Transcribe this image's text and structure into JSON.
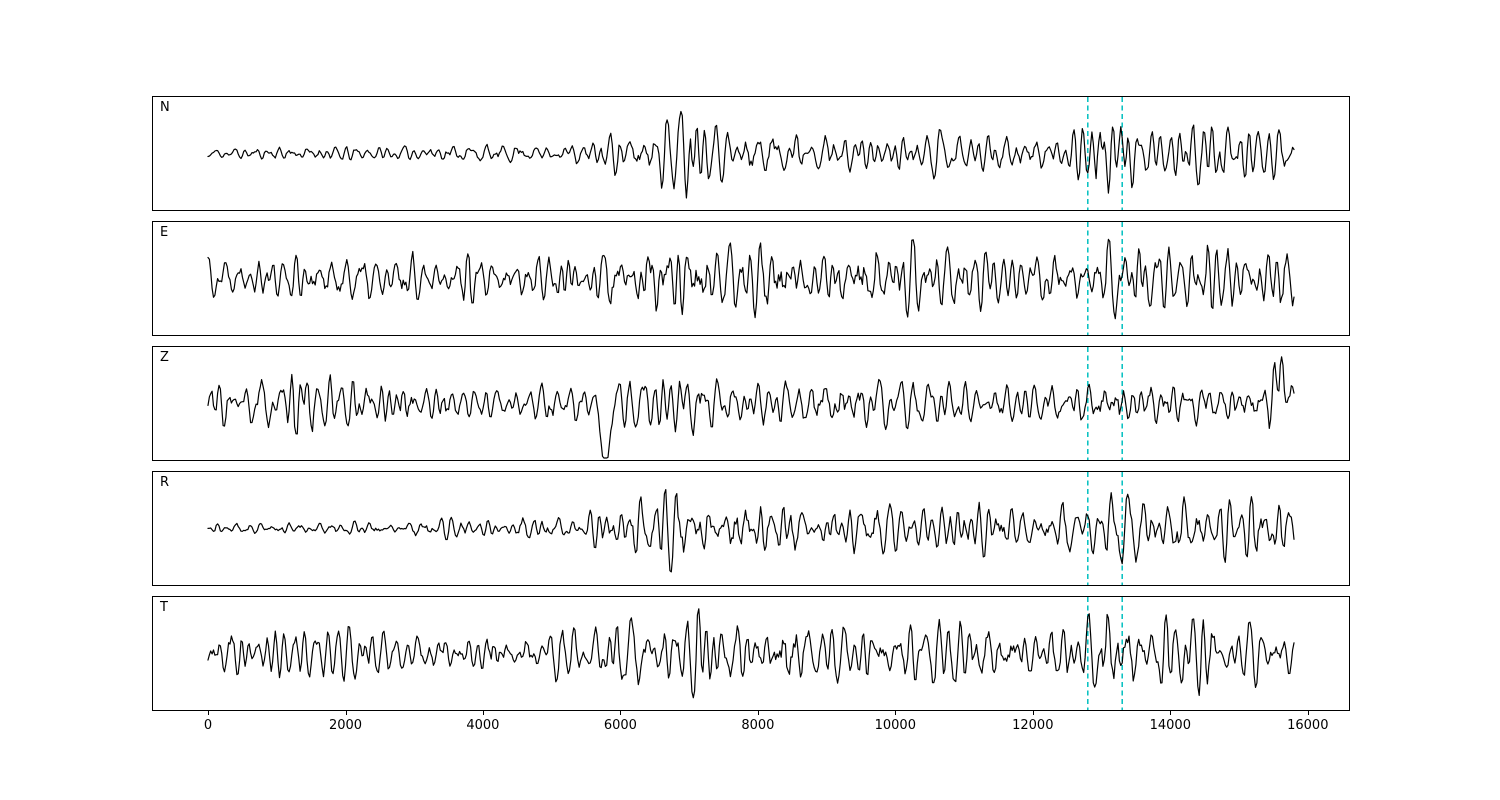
{
  "figure": {
    "background": "#ffffff",
    "panel_border_color": "#000000",
    "trace_color": "#000000",
    "marker_color": "#00bfbf",
    "marker_style": "dashed"
  },
  "chart_data": {
    "type": "line",
    "title": "",
    "xlabel": "",
    "ylabel": "",
    "legend": null,
    "grid": false,
    "x_range": [
      -800,
      16600
    ],
    "data_x_range": [
      0,
      15800
    ],
    "x_ticks": [
      0,
      2000,
      4000,
      6000,
      8000,
      10000,
      12000,
      14000,
      16000
    ],
    "x_tick_labels": [
      "0",
      "2000",
      "4000",
      "6000",
      "8000",
      "10000",
      "12000",
      "14000",
      "16000"
    ],
    "y_ticks_visible": false,
    "amplitude_scale": "normalized",
    "vlines": [
      12800,
      13300
    ],
    "panels": [
      {
        "label": "N",
        "seed": 11,
        "envelope": [
          [
            0,
            0.13
          ],
          [
            1500,
            0.16
          ],
          [
            3000,
            0.18
          ],
          [
            4500,
            0.2
          ],
          [
            5400,
            0.28
          ],
          [
            5800,
            0.42
          ],
          [
            6200,
            0.45
          ],
          [
            6500,
            0.75
          ],
          [
            6900,
            1.0
          ],
          [
            7300,
            0.65
          ],
          [
            7800,
            0.5
          ],
          [
            8300,
            0.55
          ],
          [
            8800,
            0.48
          ],
          [
            9300,
            0.42
          ],
          [
            9700,
            0.3
          ],
          [
            10200,
            0.45
          ],
          [
            10800,
            0.5
          ],
          [
            11500,
            0.45
          ],
          [
            12000,
            0.42
          ],
          [
            12500,
            0.45
          ],
          [
            12800,
            0.6
          ],
          [
            13000,
            1.05
          ],
          [
            13300,
            0.95
          ],
          [
            13600,
            0.55
          ],
          [
            14000,
            0.6
          ],
          [
            14500,
            0.7
          ],
          [
            15000,
            0.55
          ],
          [
            15400,
            0.65
          ],
          [
            15800,
            0.6
          ]
        ],
        "spikes": []
      },
      {
        "label": "E",
        "seed": 22,
        "envelope": [
          [
            0,
            0.45
          ],
          [
            1000,
            0.5
          ],
          [
            2000,
            0.48
          ],
          [
            3000,
            0.52
          ],
          [
            4000,
            0.45
          ],
          [
            5000,
            0.55
          ],
          [
            5800,
            0.65
          ],
          [
            6300,
            0.75
          ],
          [
            6800,
            0.8
          ],
          [
            7500,
            0.7
          ],
          [
            8000,
            0.75
          ],
          [
            8700,
            0.65
          ],
          [
            9300,
            0.7
          ],
          [
            10000,
            0.72
          ],
          [
            10700,
            0.75
          ],
          [
            11300,
            0.65
          ],
          [
            12000,
            0.6
          ],
          [
            12600,
            0.65
          ],
          [
            13100,
            0.95
          ],
          [
            13400,
            0.85
          ],
          [
            14000,
            0.7
          ],
          [
            14600,
            0.75
          ],
          [
            15200,
            0.8
          ],
          [
            15600,
            0.65
          ],
          [
            15800,
            0.55
          ]
        ],
        "spikes": []
      },
      {
        "label": "Z",
        "seed": 33,
        "envelope": [
          [
            0,
            0.5
          ],
          [
            1000,
            0.55
          ],
          [
            1600,
            0.6
          ],
          [
            2500,
            0.5
          ],
          [
            3500,
            0.45
          ],
          [
            4500,
            0.42
          ],
          [
            5300,
            0.45
          ],
          [
            5750,
            0.55
          ],
          [
            6100,
            0.6
          ],
          [
            6500,
            0.65
          ],
          [
            6900,
            0.8
          ],
          [
            7300,
            0.55
          ],
          [
            7800,
            0.6
          ],
          [
            8300,
            0.5
          ],
          [
            8800,
            0.55
          ],
          [
            9500,
            0.6
          ],
          [
            10200,
            0.5
          ],
          [
            10800,
            0.45
          ],
          [
            11400,
            0.35
          ],
          [
            12000,
            0.4
          ],
          [
            12600,
            0.45
          ],
          [
            13100,
            0.55
          ],
          [
            13600,
            0.5
          ],
          [
            14200,
            0.55
          ],
          [
            14800,
            0.5
          ],
          [
            15300,
            0.55
          ],
          [
            15600,
            0.85
          ],
          [
            15800,
            0.5
          ]
        ],
        "spikes": [
          {
            "x": 5780,
            "amp": -1.1,
            "width": 90
          },
          {
            "x": 15580,
            "amp": 0.75,
            "width": 80
          }
        ]
      },
      {
        "label": "R",
        "seed": 44,
        "envelope": [
          [
            0,
            0.13
          ],
          [
            1500,
            0.16
          ],
          [
            3000,
            0.2
          ],
          [
            4200,
            0.22
          ],
          [
            5000,
            0.28
          ],
          [
            5600,
            0.35
          ],
          [
            6100,
            0.5
          ],
          [
            6500,
            0.7
          ],
          [
            6900,
            0.9
          ],
          [
            7300,
            0.6
          ],
          [
            7800,
            0.55
          ],
          [
            8300,
            0.6
          ],
          [
            8900,
            0.5
          ],
          [
            9500,
            0.55
          ],
          [
            10000,
            0.45
          ],
          [
            10600,
            0.5
          ],
          [
            11200,
            0.55
          ],
          [
            11800,
            0.45
          ],
          [
            12400,
            0.5
          ],
          [
            12800,
            0.65
          ],
          [
            13050,
            1.05
          ],
          [
            13350,
            0.9
          ],
          [
            13700,
            0.55
          ],
          [
            14200,
            0.6
          ],
          [
            14700,
            0.65
          ],
          [
            15200,
            0.6
          ],
          [
            15600,
            0.75
          ],
          [
            15800,
            0.6
          ]
        ],
        "spikes": []
      },
      {
        "label": "T",
        "seed": 55,
        "envelope": [
          [
            0,
            0.5
          ],
          [
            800,
            0.6
          ],
          [
            1600,
            0.55
          ],
          [
            2400,
            0.5
          ],
          [
            3200,
            0.45
          ],
          [
            4000,
            0.48
          ],
          [
            4800,
            0.52
          ],
          [
            5500,
            0.6
          ],
          [
            6000,
            0.75
          ],
          [
            6600,
            0.8
          ],
          [
            7200,
            0.85
          ],
          [
            7800,
            0.75
          ],
          [
            8400,
            0.8
          ],
          [
            9000,
            0.7
          ],
          [
            9600,
            0.75
          ],
          [
            10200,
            0.65
          ],
          [
            10800,
            0.8
          ],
          [
            11400,
            0.7
          ],
          [
            12000,
            0.6
          ],
          [
            12600,
            0.7
          ],
          [
            13100,
            0.95
          ],
          [
            13500,
            0.85
          ],
          [
            14000,
            0.75
          ],
          [
            14500,
            0.8
          ],
          [
            15000,
            0.7
          ],
          [
            15400,
            0.6
          ],
          [
            15800,
            0.45
          ]
        ],
        "spikes": []
      }
    ]
  }
}
